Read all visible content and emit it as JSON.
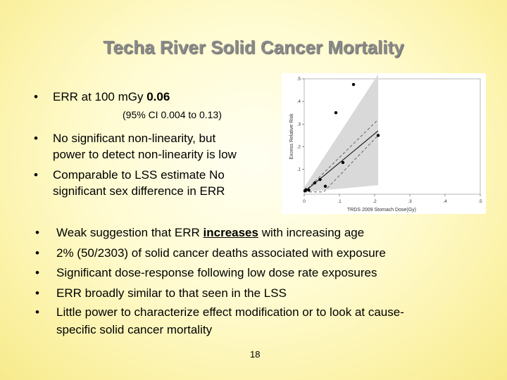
{
  "slide": {
    "title": "Techa River Solid Cancer Mortality",
    "bullet_symbol": "•",
    "err_label": "ERR at 100 mGy ",
    "err_value": "0.06",
    "ci_text": "(95% CI 0.004 to 0.13)",
    "bullet2_line1": "No significant non-linearity, but",
    "bullet2_line2": "power to detect non-linearity is low",
    "bullet3_line1": "Comparable to LSS estimate No",
    "bullet3_line2": "significant sex difference in ERR",
    "lower_bullets": {
      "b1_pre": "Weak suggestion that ERR ",
      "b1_emph": "increases",
      "b1_post": " with increasing age",
      "b2": "2% (50/2303) of solid cancer deaths associated with exposure",
      "b3": "Significant dose-response following low dose rate exposures",
      "b4": "ERR broadly similar to that seen in the LSS",
      "b5_line1": "Little power to characterize effect modification or to look at cause-",
      "b5_line2": "specific solid cancer mortality"
    },
    "page_number": "18"
  },
  "chart_data": {
    "type": "scatter",
    "xlabel": "TRDS 2009 Stomach Dose(Gy)",
    "ylabel": "Excess Relative Risk",
    "xlim": [
      0,
      0.5
    ],
    "ylim": [
      -0.01,
      0.5
    ],
    "xticks": [
      "0",
      ".1",
      ".2",
      ".3",
      ".4",
      ".5"
    ],
    "yticks": [
      ".1",
      ".2",
      ".3",
      ".4",
      ".5"
    ],
    "points": [
      {
        "x": 0.002,
        "y": 0.005
      },
      {
        "x": 0.005,
        "y": 0.01
      },
      {
        "x": 0.013,
        "y": 0.008
      },
      {
        "x": 0.03,
        "y": 0.04
      },
      {
        "x": 0.045,
        "y": 0.055
      },
      {
        "x": 0.06,
        "y": 0.025
      },
      {
        "x": 0.09,
        "y": 0.35
      },
      {
        "x": 0.11,
        "y": 0.13
      },
      {
        "x": 0.14,
        "y": 0.475
      },
      {
        "x": 0.21,
        "y": 0.25
      }
    ],
    "fit_line": {
      "x": [
        0,
        0.21
      ],
      "y": [
        0.0,
        0.27
      ]
    },
    "ci_band": {
      "x": [
        0,
        0.21
      ],
      "lower": [
        0.0,
        0.03
      ],
      "upper": [
        0.02,
        0.52
      ]
    },
    "dashed_upper": {
      "x": [
        0,
        0.21
      ],
      "y": [
        0.0,
        0.32
      ]
    },
    "dashed_lower": {
      "x": [
        0,
        0.055,
        0.21
      ],
      "y": [
        0.0,
        0.0,
        0.25
      ]
    },
    "colors": {
      "band": "#d9d9d9",
      "line": "#222222",
      "point": "#000000"
    }
  }
}
